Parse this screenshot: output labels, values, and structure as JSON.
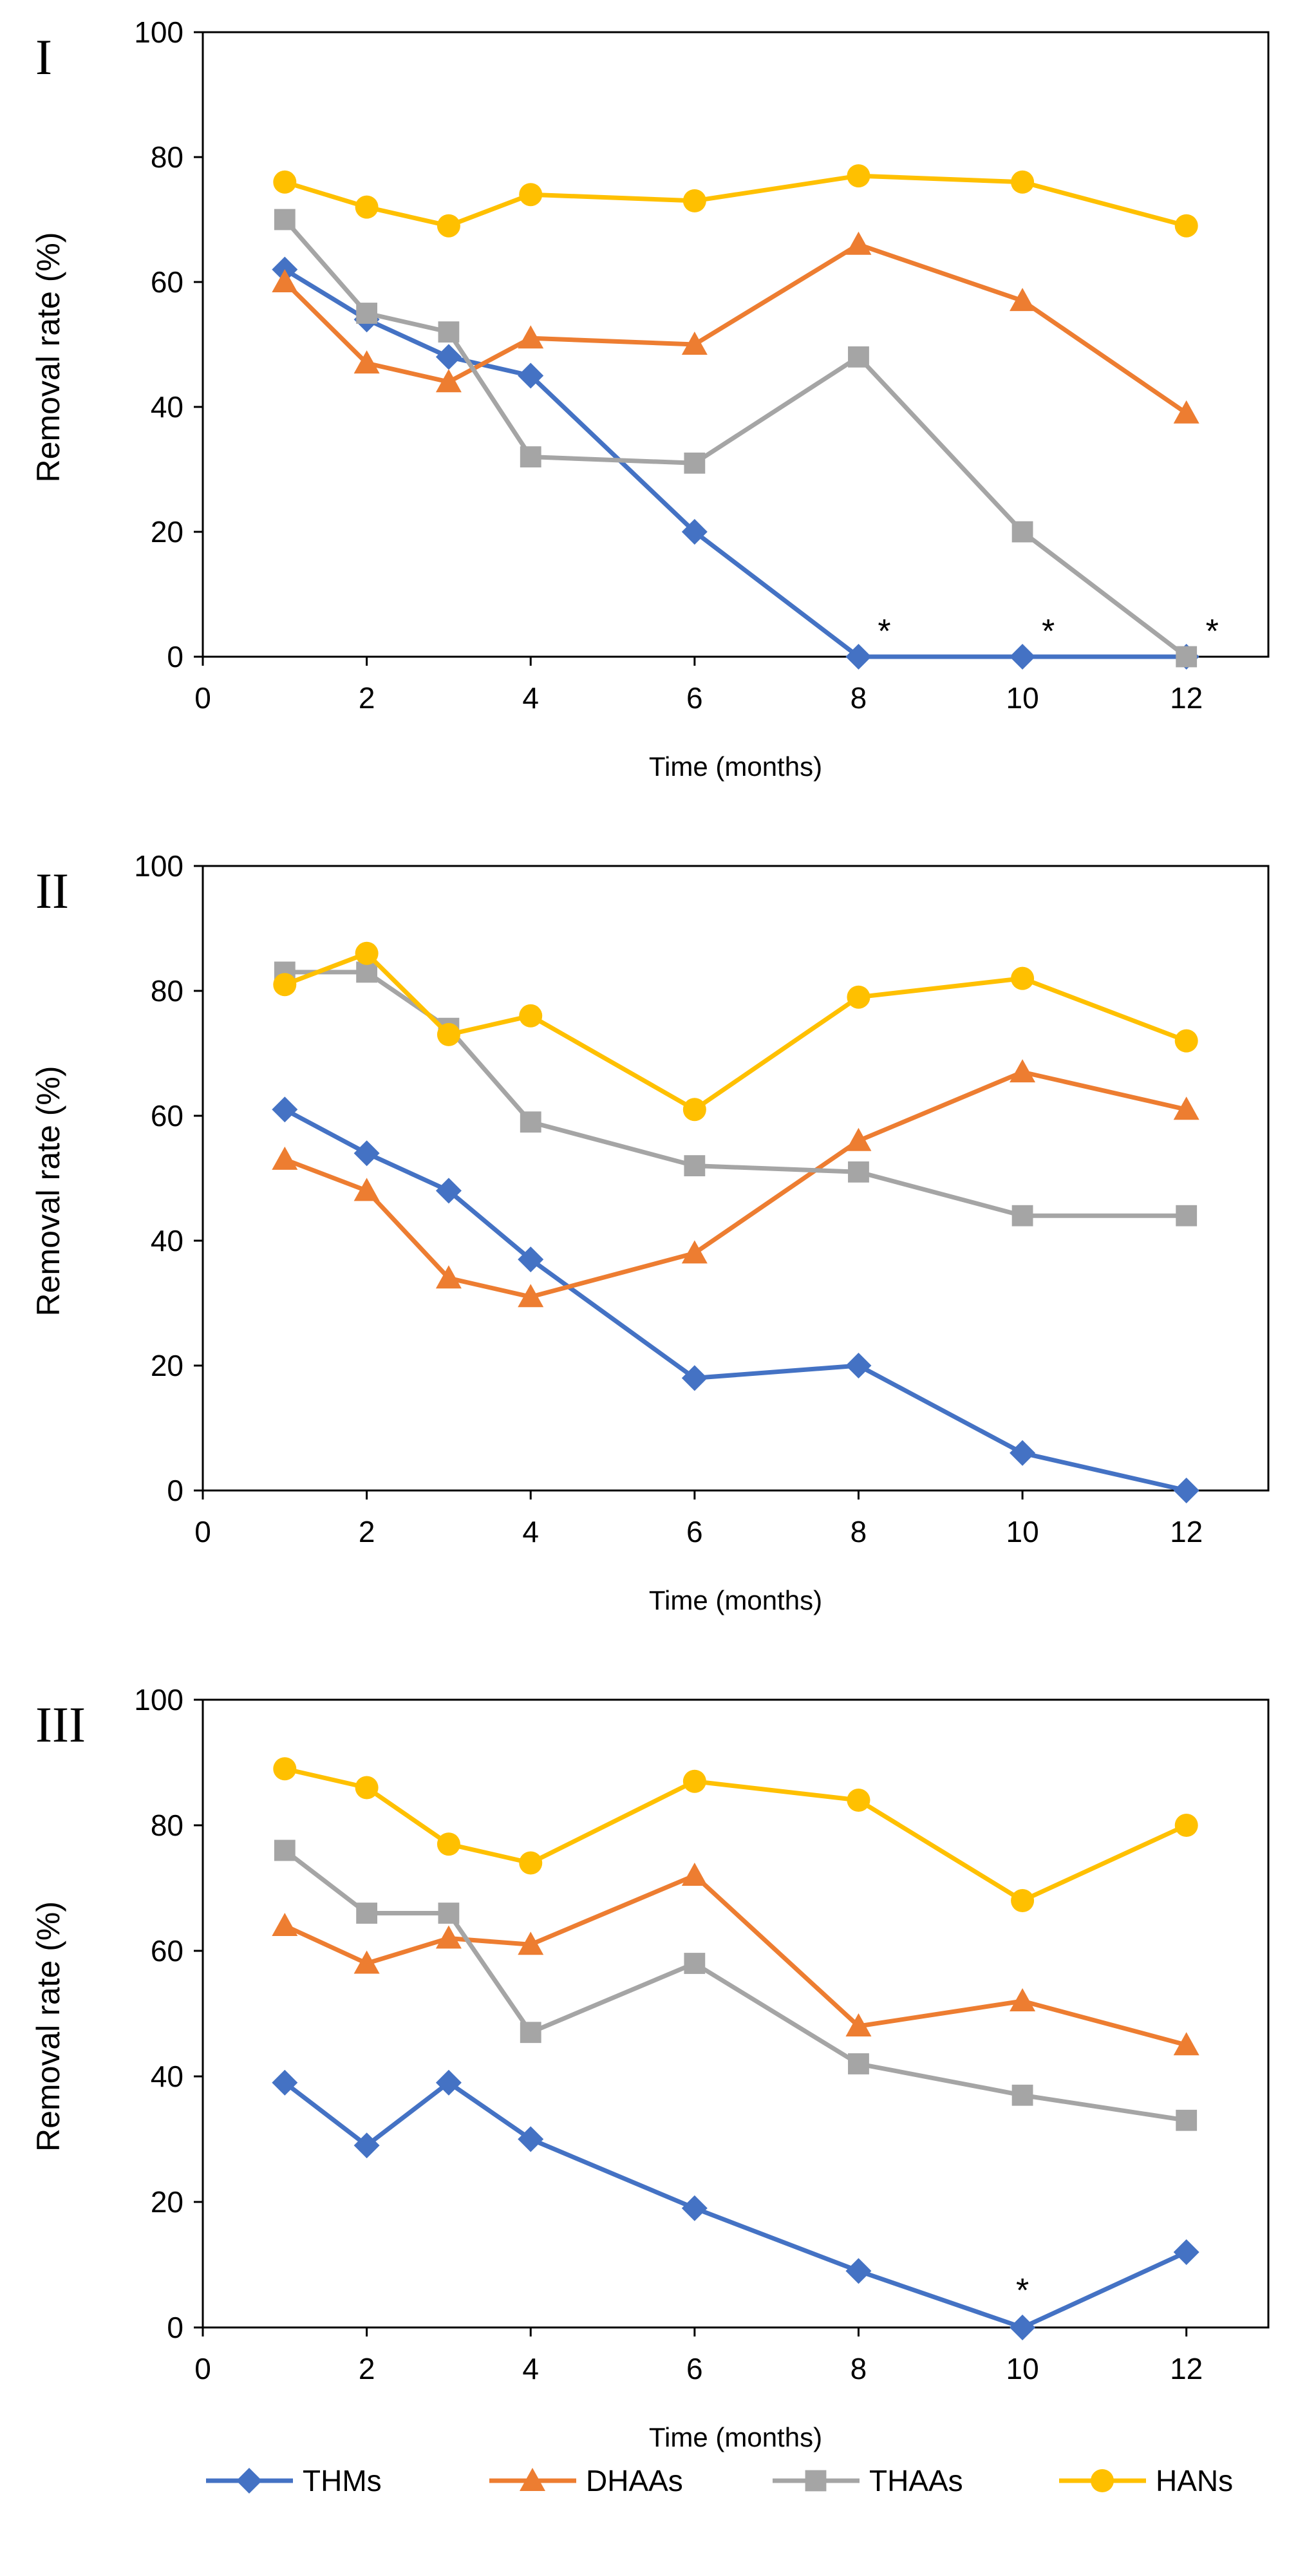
{
  "chart_data": [
    {
      "type": "line",
      "panel_label": "I",
      "title": "",
      "xlabel": "Time (months)",
      "ylabel": "Removal rate (%)",
      "ylabel_color": "#808080",
      "xlim": [
        0,
        13
      ],
      "ylim": [
        0,
        100
      ],
      "x_ticks": [
        0,
        2,
        4,
        6,
        8,
        10,
        12
      ],
      "y_ticks": [
        0,
        20,
        40,
        60,
        80,
        100
      ],
      "grid": false,
      "x": [
        1,
        2,
        3,
        4,
        6,
        8,
        10,
        12
      ],
      "series": [
        {
          "name": "THMs",
          "values": [
            62,
            54,
            48,
            45,
            20,
            0,
            0,
            0
          ]
        },
        {
          "name": "DHAAs",
          "values": [
            60,
            47,
            44,
            51,
            50,
            66,
            57,
            39
          ]
        },
        {
          "name": "THAAs",
          "values": [
            70,
            55,
            52,
            32,
            31,
            48,
            20,
            0
          ]
        },
        {
          "name": "HANs",
          "values": [
            76,
            72,
            69,
            74,
            73,
            77,
            76,
            69
          ]
        }
      ],
      "annotations": [
        {
          "text": "*",
          "x": 8,
          "y": 0
        },
        {
          "text": "*",
          "x": 10,
          "y": 0
        },
        {
          "text": "*",
          "x": 12,
          "y": 0
        }
      ]
    },
    {
      "type": "line",
      "panel_label": "II",
      "title": "",
      "xlabel": "Time (months)",
      "ylabel": "Removal rate (%)",
      "ylabel_color": "#000000",
      "xlim": [
        0,
        13
      ],
      "ylim": [
        0,
        100
      ],
      "x_ticks": [
        0,
        2,
        4,
        6,
        8,
        10,
        12
      ],
      "y_ticks": [
        0,
        20,
        40,
        60,
        80,
        100
      ],
      "grid": false,
      "x": [
        1,
        2,
        3,
        4,
        6,
        8,
        10,
        12
      ],
      "series": [
        {
          "name": "THMs",
          "values": [
            61,
            54,
            48,
            37,
            18,
            20,
            6,
            0
          ]
        },
        {
          "name": "DHAAs",
          "values": [
            53,
            48,
            34,
            31,
            38,
            56,
            67,
            61
          ]
        },
        {
          "name": "THAAs",
          "values": [
            83,
            83,
            74,
            59,
            52,
            51,
            44,
            44
          ]
        },
        {
          "name": "HANs",
          "values": [
            81,
            86,
            73,
            76,
            61,
            79,
            82,
            72
          ]
        }
      ],
      "annotations": []
    },
    {
      "type": "line",
      "panel_label": "III",
      "title": "",
      "xlabel": "Time (months)",
      "ylabel": "Removal rate (%)",
      "ylabel_color": "#000000",
      "xlim": [
        0,
        13
      ],
      "ylim": [
        0,
        100
      ],
      "x_ticks": [
        0,
        2,
        4,
        6,
        8,
        10,
        12
      ],
      "y_ticks": [
        0,
        20,
        40,
        60,
        80,
        100
      ],
      "grid": false,
      "x": [
        1,
        2,
        3,
        4,
        6,
        8,
        10,
        12
      ],
      "series": [
        {
          "name": "THMs",
          "values": [
            39,
            29,
            39,
            30,
            19,
            9,
            0,
            12
          ]
        },
        {
          "name": "DHAAs",
          "values": [
            64,
            58,
            62,
            61,
            72,
            48,
            52,
            45
          ]
        },
        {
          "name": "THAAs",
          "values": [
            76,
            66,
            66,
            47,
            58,
            42,
            37,
            33
          ]
        },
        {
          "name": "HANs",
          "values": [
            89,
            86,
            77,
            74,
            87,
            84,
            68,
            80
          ]
        }
      ],
      "annotations": [
        {
          "text": "*",
          "x": 10,
          "y": 0
        }
      ]
    }
  ],
  "legend": {
    "position": "bottom",
    "items": [
      {
        "name": "THMs",
        "color": "#4472C4",
        "marker": "diamond"
      },
      {
        "name": "DHAAs",
        "color": "#ED7D31",
        "marker": "triangle"
      },
      {
        "name": "THAAs",
        "color": "#A5A5A5",
        "marker": "square"
      },
      {
        "name": "HANs",
        "color": "#FFC000",
        "marker": "circle"
      }
    ]
  }
}
